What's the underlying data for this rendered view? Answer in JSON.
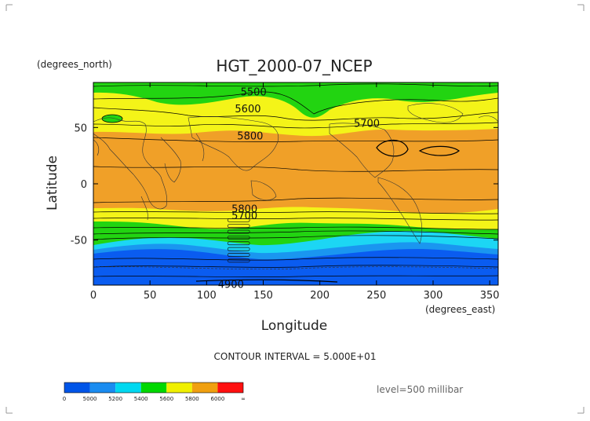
{
  "plot": {
    "title": "HGT_2000-07_NCEP",
    "y_units": "(degrees_north)",
    "x_units": "(degrees_east)",
    "ylabel": "Latitude",
    "xlabel": "Longitude",
    "contour_interval": "CONTOUR INTERVAL = 5.000E+01",
    "level": "level=500 millibar"
  },
  "axes": {
    "x_ticks": [
      "0",
      "50",
      "100",
      "150",
      "200",
      "250",
      "300",
      "350"
    ],
    "x_values": [
      0,
      50,
      100,
      150,
      200,
      250,
      300,
      350
    ],
    "x_range": [
      0,
      357.5
    ],
    "y_ticks": [
      "50",
      "0",
      "-50"
    ],
    "y_values": [
      50,
      0,
      -50
    ],
    "y_range": [
      -90,
      90
    ]
  },
  "contour_labels": [
    {
      "text": "5500",
      "lon": 130,
      "lat": 82
    },
    {
      "text": "5600",
      "lon": 125,
      "lat": 67
    },
    {
      "text": "5700",
      "lon": 230,
      "lat": 54
    },
    {
      "text": "5800",
      "lon": 127,
      "lat": 43
    },
    {
      "text": "5800",
      "lon": 122,
      "lat": -22
    },
    {
      "text": "5700",
      "lon": 122,
      "lat": -28
    },
    {
      "text": "4900",
      "lon": 110,
      "lat": -89
    }
  ],
  "stacked_labels": {
    "lon": 120,
    "lat_top": -33,
    "lat_bottom": -69,
    "count": 8
  },
  "colorbar": {
    "labels": [
      "0",
      "5000",
      "5200",
      "5400",
      "5600",
      "5800",
      "6000",
      "∞"
    ],
    "colors": [
      "#0055e8",
      "#1a8cf0",
      "#00d8f0",
      "#00d800",
      "#f0f000",
      "#f0a010",
      "#ff1010"
    ]
  },
  "colors": {
    "green": "#22d411",
    "yellow": "#f4f418",
    "orange": "#f0a028",
    "cyan": "#1cd6f4",
    "lightblue": "#1a96f0",
    "blue": "#0a5cf0"
  }
}
